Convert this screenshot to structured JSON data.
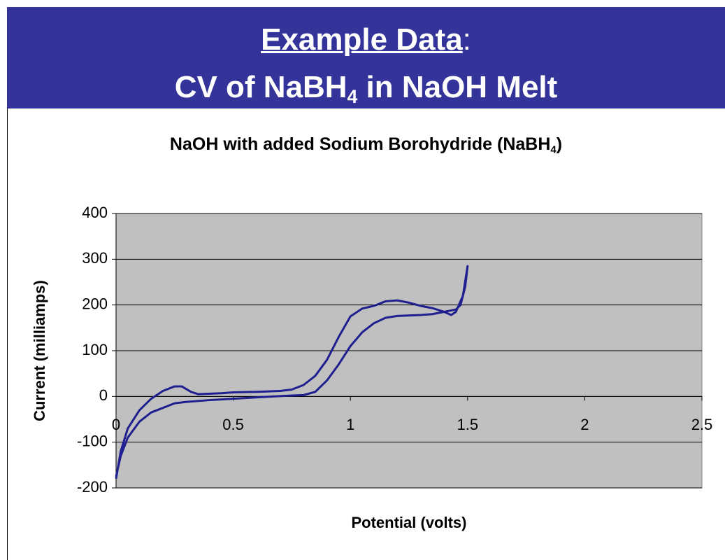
{
  "slide": {
    "title_main": "Example Data",
    "title_colon": ":",
    "title_line2": [
      "CV of NaBH",
      "4",
      " in NaOH Melt"
    ]
  },
  "chart_data": {
    "type": "line",
    "title": [
      "NaOH with added Sodium Borohydride (NaBH",
      "4",
      ")"
    ],
    "xlabel": "Potential (volts)",
    "ylabel": "Current (milliamps)",
    "xlim": [
      0,
      2.5
    ],
    "xticks": [
      0,
      0.5,
      1,
      1.5,
      2,
      2.5
    ],
    "ylim": [
      -200,
      400
    ],
    "yticks": [
      -200,
      -100,
      0,
      100,
      200,
      300,
      400
    ],
    "grid": true,
    "background": "#c0c0c0",
    "x": [
      0,
      0.02,
      0.05,
      0.1,
      0.15,
      0.2,
      0.25,
      0.28,
      0.32,
      0.35,
      0.45,
      0.5,
      0.6,
      0.7,
      0.75,
      0.8,
      0.85,
      0.9,
      0.95,
      1.0,
      1.05,
      1.1,
      1.15,
      1.2,
      1.25,
      1.3,
      1.35,
      1.4,
      1.43,
      1.45,
      1.48,
      1.5,
      1.49,
      1.47,
      1.45,
      1.4,
      1.35,
      1.3,
      1.2,
      1.15,
      1.1,
      1.05,
      1.0,
      0.95,
      0.9,
      0.85,
      0.8,
      0.75,
      0.6,
      0.5,
      0.4,
      0.3,
      0.25,
      0.2,
      0.15,
      0.1,
      0.05,
      0.02,
      0
    ],
    "series": [
      {
        "name": "CV",
        "color": "#1f1f8f",
        "values": [
          -180,
          -120,
          -70,
          -30,
          -5,
          12,
          22,
          22,
          10,
          5,
          7,
          9,
          10,
          12,
          15,
          25,
          45,
          80,
          130,
          175,
          192,
          198,
          208,
          210,
          205,
          198,
          193,
          185,
          178,
          185,
          220,
          285,
          240,
          200,
          190,
          185,
          180,
          178,
          176,
          172,
          160,
          140,
          110,
          70,
          35,
          10,
          3,
          2,
          -2,
          -5,
          -8,
          -12,
          -15,
          -25,
          -35,
          -55,
          -90,
          -130,
          -175
        ]
      }
    ]
  }
}
